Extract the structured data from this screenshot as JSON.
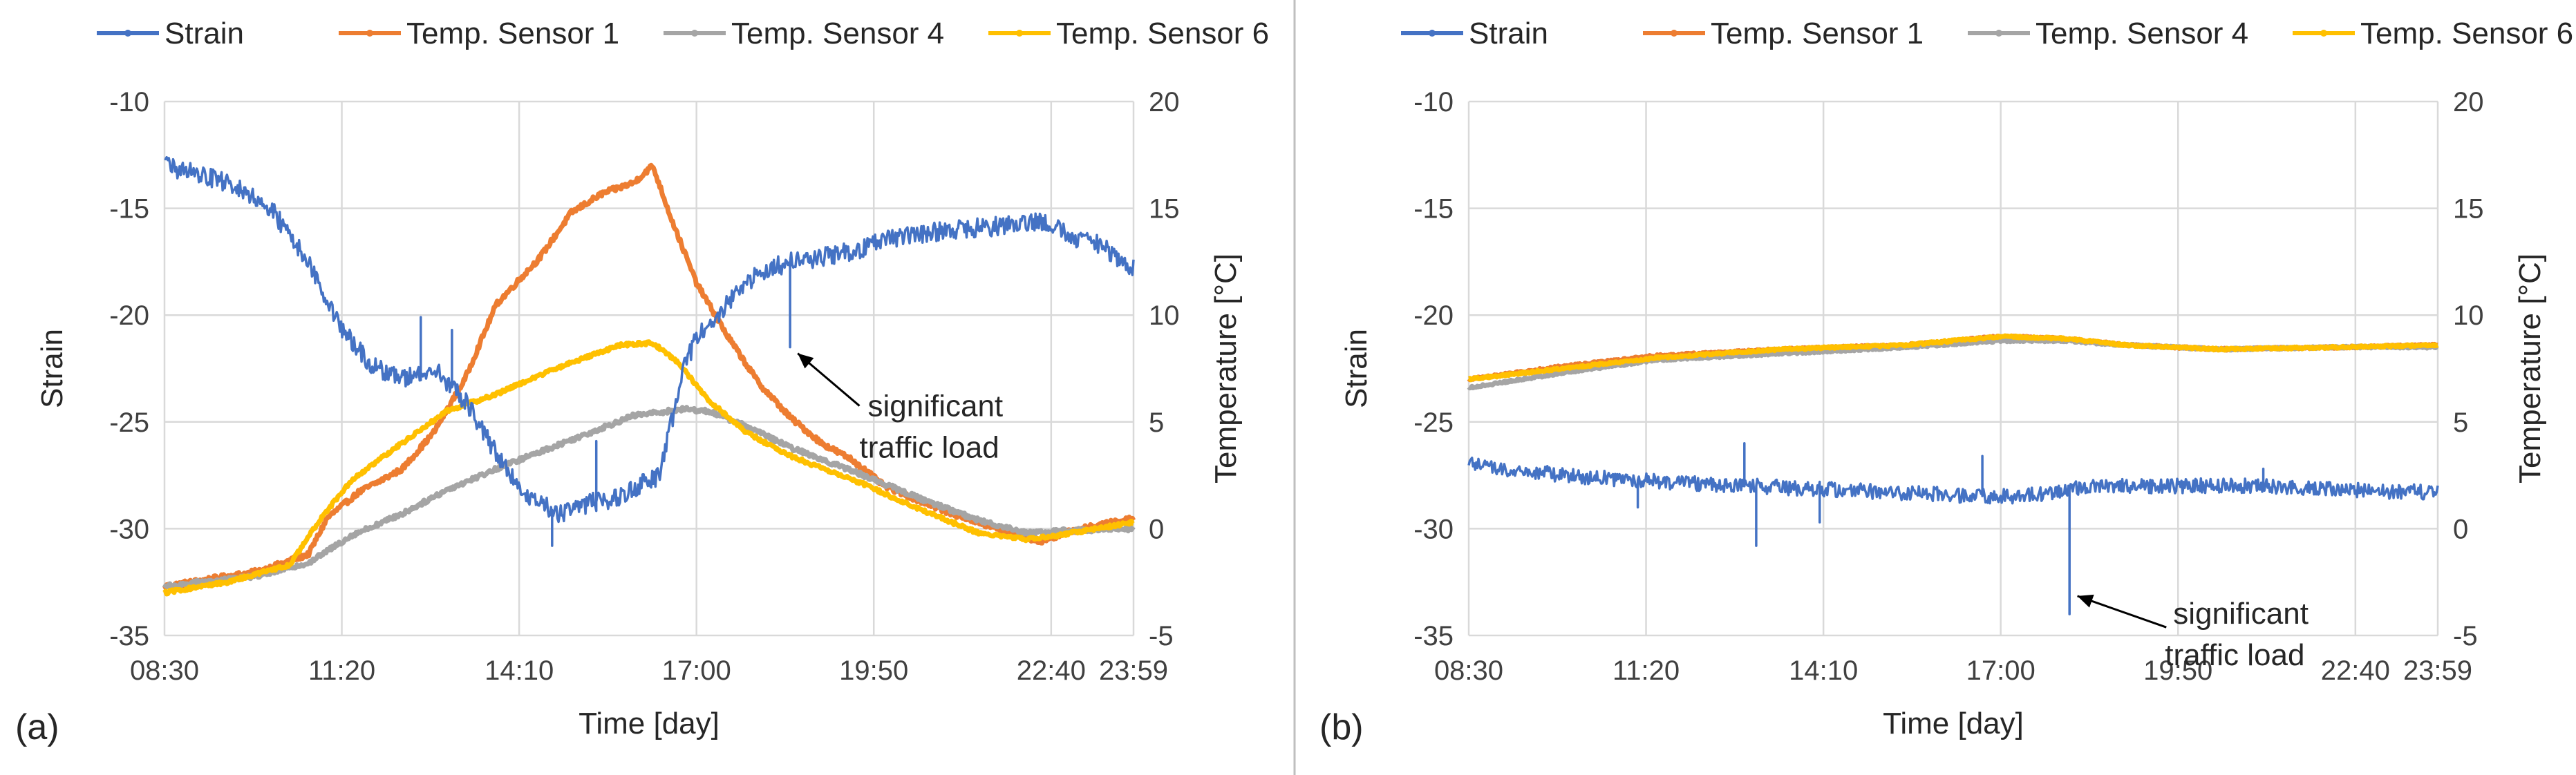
{
  "chart_data": [
    {
      "panel_label": "(a)",
      "type": "line",
      "xlabel": "Time [day]",
      "ylabel": "Strain",
      "y2label": "Temperature [°C]",
      "x_ticks": [
        "08:30",
        "11:20",
        "14:10",
        "17:00",
        "19:50",
        "22:40",
        "23:59"
      ],
      "x_tick_hours": [
        8.5,
        11.333,
        14.167,
        17.0,
        19.833,
        22.667,
        23.983
      ],
      "xlim": [
        8.5,
        23.983
      ],
      "ylim": [
        -35,
        -10
      ],
      "y_ticks": [
        -35,
        -30,
        -25,
        -20,
        -15,
        -10
      ],
      "y2lim": [
        -5,
        20
      ],
      "y2_ticks": [
        -5,
        0,
        5,
        10,
        15,
        20
      ],
      "grid": true,
      "legend_position": "top",
      "annotation": {
        "lines": [
          "significant",
          "traffic load"
        ],
        "target_hour": 18.5,
        "target_value": -21.5,
        "axis": "left"
      },
      "series": [
        {
          "name": "Strain",
          "axis": "left",
          "color": "#4472C4",
          "noise": 0.45,
          "points": [
            [
              8.5,
              -13
            ],
            [
              9.5,
              -13.8
            ],
            [
              10.2,
              -15
            ],
            [
              10.8,
              -17.5
            ],
            [
              11.3,
              -20.5
            ],
            [
              11.8,
              -22.3
            ],
            [
              12.3,
              -23
            ],
            [
              12.8,
              -22.5
            ],
            [
              13.3,
              -24
            ],
            [
              13.8,
              -26.5
            ],
            [
              14.3,
              -28.5
            ],
            [
              14.8,
              -29.3
            ],
            [
              15.3,
              -28.8
            ],
            [
              15.8,
              -28.5
            ],
            [
              16.2,
              -27.8
            ],
            [
              16.4,
              -27.5
            ],
            [
              16.6,
              -25
            ],
            [
              16.8,
              -22.5
            ],
            [
              17.0,
              -21
            ],
            [
              17.5,
              -19.5
            ],
            [
              18.0,
              -18
            ],
            [
              18.5,
              -17.5
            ],
            [
              19.0,
              -17.3
            ],
            [
              19.5,
              -17
            ],
            [
              20.0,
              -16.5
            ],
            [
              21.0,
              -16
            ],
            [
              22.0,
              -15.8
            ],
            [
              22.5,
              -15.6
            ],
            [
              23.0,
              -16.3
            ],
            [
              23.5,
              -16.8
            ],
            [
              23.983,
              -17.8
            ]
          ],
          "spikes": [
            [
              12.6,
              -20.1
            ],
            [
              13.1,
              -20.7
            ],
            [
              14.7,
              -30.8
            ],
            [
              15.4,
              -25.9
            ],
            [
              18.5,
              -21.5
            ]
          ]
        },
        {
          "name": "Temp. Sensor 1",
          "axis": "right",
          "color": "#ED7D31",
          "noise": 0.12,
          "points": [
            [
              8.5,
              -2.7
            ],
            [
              10.0,
              -2
            ],
            [
              10.8,
              -1.2
            ],
            [
              11.1,
              0.5
            ],
            [
              11.6,
              1.7
            ],
            [
              12.3,
              2.8
            ],
            [
              12.8,
              4.5
            ],
            [
              13.3,
              7
            ],
            [
              13.8,
              10.5
            ],
            [
              14.5,
              12.7
            ],
            [
              15.0,
              14.8
            ],
            [
              15.5,
              15.7
            ],
            [
              16.0,
              16.2
            ],
            [
              16.3,
              17
            ],
            [
              16.6,
              14.5
            ],
            [
              17.0,
              11.5
            ],
            [
              17.5,
              9
            ],
            [
              18.0,
              6.8
            ],
            [
              18.5,
              5.2
            ],
            [
              19.0,
              4
            ],
            [
              19.5,
              3.2
            ],
            [
              20.0,
              2
            ],
            [
              21.0,
              0.8
            ],
            [
              22.0,
              -0.2
            ],
            [
              22.5,
              -0.6
            ],
            [
              23.0,
              -0.1
            ],
            [
              23.983,
              0.5
            ]
          ]
        },
        {
          "name": "Temp. Sensor 4",
          "axis": "right",
          "color": "#A5A5A5",
          "noise": 0.1,
          "points": [
            [
              8.5,
              -2.7
            ],
            [
              10.0,
              -2.2
            ],
            [
              10.8,
              -1.6
            ],
            [
              11.5,
              -0.3
            ],
            [
              12.3,
              0.7
            ],
            [
              13.0,
              1.8
            ],
            [
              13.8,
              2.8
            ],
            [
              14.5,
              3.6
            ],
            [
              15.3,
              4.5
            ],
            [
              16.0,
              5.3
            ],
            [
              16.8,
              5.6
            ],
            [
              17.2,
              5.5
            ],
            [
              17.8,
              4.8
            ],
            [
              18.5,
              3.8
            ],
            [
              19.5,
              2.7
            ],
            [
              20.5,
              1.5
            ],
            [
              21.5,
              0.4
            ],
            [
              22.3,
              -0.2
            ],
            [
              22.8,
              -0.1
            ],
            [
              23.983,
              0
            ]
          ]
        },
        {
          "name": "Temp. Sensor 6",
          "axis": "right",
          "color": "#FFC000",
          "noise": 0.08,
          "points": [
            [
              8.5,
              -3
            ],
            [
              9.5,
              -2.5
            ],
            [
              10.5,
              -1.7
            ],
            [
              11.0,
              0.5
            ],
            [
              11.5,
              2.3
            ],
            [
              12.2,
              3.8
            ],
            [
              13.0,
              5.5
            ],
            [
              13.8,
              6.3
            ],
            [
              14.5,
              7.2
            ],
            [
              15.2,
              8
            ],
            [
              15.8,
              8.6
            ],
            [
              16.3,
              8.7
            ],
            [
              16.7,
              7.8
            ],
            [
              17.2,
              6
            ],
            [
              17.8,
              4.5
            ],
            [
              18.5,
              3.4
            ],
            [
              19.5,
              2.3
            ],
            [
              20.5,
              1
            ],
            [
              21.5,
              -0.2
            ],
            [
              22.3,
              -0.5
            ],
            [
              22.8,
              -0.3
            ],
            [
              23.983,
              0.3
            ]
          ]
        }
      ]
    },
    {
      "panel_label": "(b)",
      "type": "line",
      "xlabel": "Time [day]",
      "ylabel": "Strain",
      "y2label": "Temperature [°C]",
      "x_ticks": [
        "08:30",
        "11:20",
        "14:10",
        "17:00",
        "19:50",
        "22:40",
        "23:59"
      ],
      "x_tick_hours": [
        8.5,
        11.333,
        14.167,
        17.0,
        19.833,
        22.667,
        23.983
      ],
      "xlim": [
        8.5,
        23.983
      ],
      "ylim": [
        -35,
        -10
      ],
      "y_ticks": [
        -35,
        -30,
        -25,
        -20,
        -15,
        -10
      ],
      "y2lim": [
        -5,
        20
      ],
      "y2_ticks": [
        -5,
        0,
        5,
        10,
        15,
        20
      ],
      "grid": true,
      "legend_position": "top",
      "annotation": {
        "lines": [
          "significant",
          "traffic load"
        ],
        "target_hour": 18.1,
        "target_value": -33.0,
        "axis": "left"
      },
      "series": [
        {
          "name": "Strain",
          "axis": "left",
          "color": "#4472C4",
          "noise": 0.35,
          "points": [
            [
              8.5,
              -27
            ],
            [
              10.0,
              -27.5
            ],
            [
              11.5,
              -27.8
            ],
            [
              13.0,
              -28
            ],
            [
              14.5,
              -28.2
            ],
            [
              16.0,
              -28.4
            ],
            [
              17.0,
              -28.5
            ],
            [
              18.0,
              -28.3
            ],
            [
              18.3,
              -28
            ],
            [
              19.5,
              -28
            ],
            [
              21.0,
              -28
            ],
            [
              22.5,
              -28.2
            ],
            [
              23.983,
              -28.3
            ]
          ],
          "spikes": [
            [
              11.2,
              -29.0
            ],
            [
              12.9,
              -26.0
            ],
            [
              13.1,
              -30.8
            ],
            [
              14.1,
              -29.7
            ],
            [
              16.7,
              -26.6
            ],
            [
              18.1,
              -34.0
            ],
            [
              21.2,
              -27.2
            ]
          ]
        },
        {
          "name": "Temp. Sensor 1",
          "axis": "right",
          "color": "#ED7D31",
          "noise": 0.05,
          "points": [
            [
              8.5,
              7
            ],
            [
              10.0,
              7.6
            ],
            [
              11.5,
              8.1
            ],
            [
              13.5,
              8.4
            ],
            [
              15.5,
              8.6
            ],
            [
              17.0,
              9
            ],
            [
              18.0,
              8.9
            ],
            [
              19.0,
              8.6
            ],
            [
              20.5,
              8.4
            ],
            [
              22.5,
              8.5
            ],
            [
              23.983,
              8.6
            ]
          ]
        },
        {
          "name": "Temp. Sensor 4",
          "axis": "right",
          "color": "#A5A5A5",
          "noise": 0.05,
          "points": [
            [
              8.5,
              6.6
            ],
            [
              10.0,
              7.3
            ],
            [
              11.5,
              7.9
            ],
            [
              13.5,
              8.2
            ],
            [
              15.5,
              8.5
            ],
            [
              17.0,
              8.8
            ],
            [
              18.0,
              8.8
            ],
            [
              19.0,
              8.6
            ],
            [
              20.5,
              8.4
            ],
            [
              22.5,
              8.5
            ],
            [
              23.983,
              8.5
            ]
          ]
        },
        {
          "name": "Temp. Sensor 6",
          "axis": "right",
          "color": "#FFC000",
          "noise": 0.05,
          "points": [
            [
              8.5,
              7
            ],
            [
              10.0,
              7.5
            ],
            [
              11.5,
              8.0
            ],
            [
              13.5,
              8.4
            ],
            [
              15.5,
              8.6
            ],
            [
              17.0,
              9
            ],
            [
              18.0,
              8.9
            ],
            [
              19.0,
              8.6
            ],
            [
              20.5,
              8.4
            ],
            [
              22.5,
              8.5
            ],
            [
              23.983,
              8.6
            ]
          ]
        }
      ]
    }
  ]
}
